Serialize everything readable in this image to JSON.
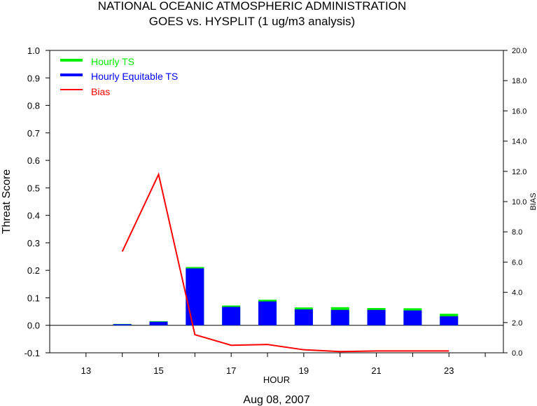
{
  "chart_data": {
    "type": "bar",
    "title": "NATIONAL OCEANIC ATMOSPHERIC ADMINISTRATION",
    "subtitle": "GOES vs. HYSPLIT  (1 ug/m3 analysis)",
    "xlabel": "HOUR",
    "ylabel": "Threat Score",
    "y2label": "BIAS",
    "footer": "Aug 08, 2007",
    "xlim": [
      12,
      24.5
    ],
    "xticks": [
      13,
      15,
      17,
      19,
      21,
      23
    ],
    "ylim": [
      -0.1,
      1.0
    ],
    "yticks": [
      "-0.1",
      "0.0",
      "0.1",
      "0.2",
      "0.3",
      "0.4",
      "0.5",
      "0.6",
      "0.7",
      "0.8",
      "0.9",
      "1.0"
    ],
    "y2lim": [
      0,
      20
    ],
    "y2ticks": [
      "0.0",
      "2.0",
      "4.0",
      "6.0",
      "8.0",
      "10.0",
      "12.0",
      "14.0",
      "16.0",
      "18.0",
      "20.0"
    ],
    "legend_position": "top-left",
    "x": [
      14,
      15,
      16,
      17,
      18,
      19,
      20,
      21,
      22,
      23
    ],
    "series": [
      {
        "name": "Hourly TS",
        "color": "#00ee00",
        "axis": "left",
        "values": [
          0.005,
          0.015,
          0.212,
          0.072,
          0.093,
          0.065,
          0.066,
          0.063,
          0.062,
          0.042
        ]
      },
      {
        "name": "Hourly Equitable TS",
        "color": "#0000ff",
        "axis": "left",
        "values": [
          0.004,
          0.013,
          0.207,
          0.067,
          0.087,
          0.058,
          0.056,
          0.056,
          0.054,
          0.033
        ]
      },
      {
        "name": "Bias",
        "color": "#ff0000",
        "axis": "right",
        "values": [
          6.7,
          11.8,
          1.2,
          0.5,
          0.55,
          0.2,
          0.08,
          0.12,
          0.12,
          0.12
        ]
      }
    ]
  }
}
